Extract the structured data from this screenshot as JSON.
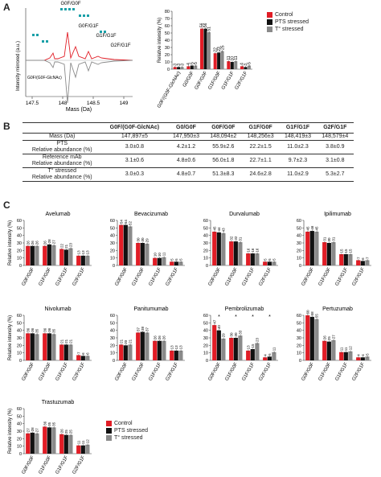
{
  "panels": {
    "a": "A",
    "b": "B",
    "c": "C"
  },
  "colors": {
    "control": "#e11d26",
    "pts": "#111111",
    "temp": "#8a8a8a"
  },
  "legend": {
    "control": "Control",
    "pts": "PTS stressed",
    "temp": "T° stressed"
  },
  "spectrum": {
    "xlabel": "Mass (Da)",
    "ylabel": "Intensity mirrored (a.u.)",
    "ticks": [
      "147.5",
      "148",
      "148.5",
      "149"
    ],
    "peak_labels": [
      "G0F/G0F",
      "G0F/G1F",
      "G1F/G1F",
      "G2F/G1F",
      "G0F/(G0F-GlcNAc)"
    ]
  },
  "table": {
    "headers": [
      "",
      "G0F/(G0F-GlcNAc)",
      "G0/G0F",
      "G0F/G0F",
      "G1F/G0F",
      "G1F/G1F",
      "G2F/G1F"
    ],
    "rows": [
      {
        "label": "Mass (Da)",
        "cells": [
          "147,897±5",
          "147,950±3",
          "148,094±2",
          "148,256±3",
          "148,419±3",
          "148,579±4"
        ]
      },
      {
        "label": "PTS",
        "label2": "Relative abundance (%)",
        "cells": [
          "3.0±0.8",
          "4.2±1.2",
          "55.9±2.6",
          "22.2±1.5",
          "11.0±2.3",
          "3.8±0.9"
        ]
      },
      {
        "label": "Reference mAb",
        "label2": "Relative abundance (%)",
        "cells": [
          "3.1±0.6",
          "4.8±0.6",
          "56.0±1.8",
          "22.7±1.1",
          "9.7±2.3",
          "3.1±0.8"
        ]
      },
      {
        "label": "T° stressed",
        "label2": "Relative abundance (%)",
        "cells": [
          "3.0±0.3",
          "4.8±0.7",
          "51.3±8.3",
          "24.6±2.8",
          "11.0±2.9",
          "5.3±2.7"
        ]
      }
    ]
  },
  "chart_data": [
    {
      "type": "bar",
      "panel": "A",
      "ylabel": "Relative intensity (%)",
      "ylim": [
        0,
        80
      ],
      "yticks": [
        0,
        10,
        20,
        30,
        40,
        50,
        60,
        70,
        80
      ],
      "categories": [
        "G0F/(G0F-GlcNAc)",
        "G0/G0F",
        "G0F/G0F",
        "G1F/G0F",
        "G1F/G1F",
        "G2F/G1F"
      ],
      "series": [
        {
          "name": "Control",
          "values": [
            3,
            4,
            56,
            22,
            11,
            4
          ]
        },
        {
          "name": "PTS stressed",
          "values": [
            3,
            5,
            56,
            23,
            10,
            3
          ]
        },
        {
          "name": "T° stressed",
          "values": [
            3,
            5,
            51,
            25,
            11,
            5
          ]
        }
      ],
      "value_labels": [
        [
          "3",
          "3",
          "3"
        ],
        [
          "4",
          "5",
          "5"
        ],
        [
          "56",
          "56",
          "51"
        ],
        [
          "22",
          "23",
          "25"
        ],
        [
          "11",
          "10",
          "11"
        ],
        [
          "4",
          "3",
          "5"
        ]
      ]
    },
    {
      "type": "bar",
      "panel": "C",
      "title": "Avelumab",
      "ylabel": "Relative intensity (%)",
      "ylim": [
        0,
        60
      ],
      "yticks": [
        0,
        10,
        20,
        30,
        40,
        50,
        60
      ],
      "categories": [
        "G0F/G0F",
        "G1F/G0F",
        "G1F/G1F",
        "G2F/G1F"
      ],
      "series": [
        {
          "name": "Control",
          "values": [
            26,
            26,
            22,
            13
          ]
        },
        {
          "name": "PTS stressed",
          "values": [
            26,
            28,
            21,
            13
          ]
        },
        {
          "name": "T° stressed",
          "values": [
            26,
            27,
            23,
            13
          ]
        }
      ]
    },
    {
      "type": "bar",
      "panel": "C",
      "title": "Bevacizumab",
      "ylabel": "",
      "ylim": [
        0,
        60
      ],
      "yticks": [
        0,
        10,
        20,
        30,
        40,
        50,
        60
      ],
      "categories": [
        "G0F/G0F",
        "G1F/G0F",
        "G1F/G1F",
        "G2F/G1F"
      ],
      "series": [
        {
          "name": "Control",
          "values": [
            54,
            30,
            10,
            5
          ]
        },
        {
          "name": "PTS stressed",
          "values": [
            54,
            30,
            10,
            5
          ]
        },
        {
          "name": "T° stressed",
          "values": [
            52,
            29,
            11,
            5
          ]
        }
      ]
    },
    {
      "type": "bar",
      "panel": "C",
      "title": "Durvalumab",
      "ylabel": "",
      "ylim": [
        0,
        60
      ],
      "yticks": [
        0,
        10,
        20,
        30,
        40,
        50,
        60
      ],
      "categories": [
        "G0F/G0F",
        "G1F/G0F",
        "G1F/G1F",
        "G2F/G1F"
      ],
      "series": [
        {
          "name": "Control",
          "values": [
            45,
            32,
            16,
            5
          ]
        },
        {
          "name": "PTS stressed",
          "values": [
            44,
            32,
            16,
            5
          ]
        },
        {
          "name": "T° stressed",
          "values": [
            43,
            31,
            16,
            5
          ]
        }
      ]
    },
    {
      "type": "bar",
      "panel": "C",
      "title": "Ipilimumab",
      "ylabel": "",
      "ylim": [
        0,
        60
      ],
      "yticks": [
        0,
        10,
        20,
        30,
        40,
        50,
        60
      ],
      "categories": [
        "G0F/G0F",
        "G1F/G0F",
        "G1F/G1F",
        "G2F/G1F"
      ],
      "series": [
        {
          "name": "Control",
          "values": [
            45,
            31,
            15,
            7
          ]
        },
        {
          "name": "PTS stressed",
          "values": [
            46,
            30,
            15,
            6
          ]
        },
        {
          "name": "T° stressed",
          "values": [
            45,
            31,
            15,
            7
          ]
        }
      ]
    },
    {
      "type": "bar",
      "panel": "C",
      "title": "Nivolumab",
      "ylabel": "Relative intensity (%)",
      "ylim": [
        0,
        60
      ],
      "yticks": [
        0,
        10,
        20,
        30,
        40,
        50,
        60
      ],
      "categories": [
        "G0F/G0F",
        "G1F/G0F",
        "G1F/G1F",
        "G2F/G1F"
      ],
      "series": [
        {
          "name": "Control",
          "values": [
            36,
            36,
            21,
            7
          ]
        },
        {
          "name": "PTS stressed",
          "values": [
            36,
            36,
            21,
            6
          ]
        },
        {
          "name": "T° stressed",
          "values": [
            35,
            35,
            21,
            6
          ]
        }
      ]
    },
    {
      "type": "bar",
      "panel": "C",
      "title": "Panitumumab",
      "ylabel": "",
      "ylim": [
        0,
        60
      ],
      "yticks": [
        0,
        10,
        20,
        30,
        40,
        50,
        60
      ],
      "categories": [
        "G0F/G0F",
        "G1F/G0F",
        "G1F/G1F",
        "G2F/G1F"
      ],
      "series": [
        {
          "name": "Control",
          "values": [
            21,
            37,
            26,
            13
          ]
        },
        {
          "name": "PTS stressed",
          "values": [
            20,
            38,
            26,
            13
          ]
        },
        {
          "name": "T° stressed",
          "values": [
            21,
            37,
            26,
            13
          ]
        }
      ]
    },
    {
      "type": "bar",
      "panel": "C",
      "title": "Pembrolizumab",
      "ylabel": "",
      "ylim": [
        0,
        60
      ],
      "yticks": [
        0,
        10,
        20,
        30,
        40,
        50,
        60
      ],
      "categories": [
        "G0F/G0F",
        "G1F/G0F",
        "G1F/G1F",
        "G2F/G1F"
      ],
      "series": [
        {
          "name": "Control",
          "values": [
            47,
            30,
            13,
            4
          ]
        },
        {
          "name": "PTS stressed",
          "values": [
            40,
            30,
            15,
            5
          ]
        },
        {
          "name": "T° stressed",
          "values": [
            29,
            33,
            23,
            11
          ]
        }
      ],
      "annotations": [
        "*",
        "*",
        "*",
        "*"
      ]
    },
    {
      "type": "bar",
      "panel": "C",
      "title": "Pertuzumab",
      "ylabel": "",
      "ylim": [
        0,
        60
      ],
      "yticks": [
        0,
        10,
        20,
        30,
        40,
        50,
        60
      ],
      "categories": [
        "G0F/G0F",
        "G1F/G0F",
        "G1F/G1F",
        "G2F/G1F"
      ],
      "series": [
        {
          "name": "Control",
          "values": [
            60,
            26,
            11,
            4
          ]
        },
        {
          "name": "PTS stressed",
          "values": [
            58,
            25,
            11,
            4
          ]
        },
        {
          "name": "T° stressed",
          "values": [
            55,
            27,
            12,
            5
          ]
        }
      ]
    },
    {
      "type": "bar",
      "panel": "C",
      "title": "Trastuzumab",
      "ylabel": "Relative intensity (%)",
      "ylim": [
        0,
        60
      ],
      "yticks": [
        0,
        10,
        20,
        30,
        40,
        50,
        60
      ],
      "categories": [
        "G0F/G0F",
        "G1F/G0F",
        "G1F/G1F",
        "G2F/G1F"
      ],
      "series": [
        {
          "name": "Control",
          "values": [
            27,
            36,
            26,
            11
          ]
        },
        {
          "name": "PTS stressed",
          "values": [
            28,
            35,
            25,
            11
          ]
        },
        {
          "name": "T° stressed",
          "values": [
            27,
            35,
            25,
            12
          ]
        }
      ]
    }
  ]
}
